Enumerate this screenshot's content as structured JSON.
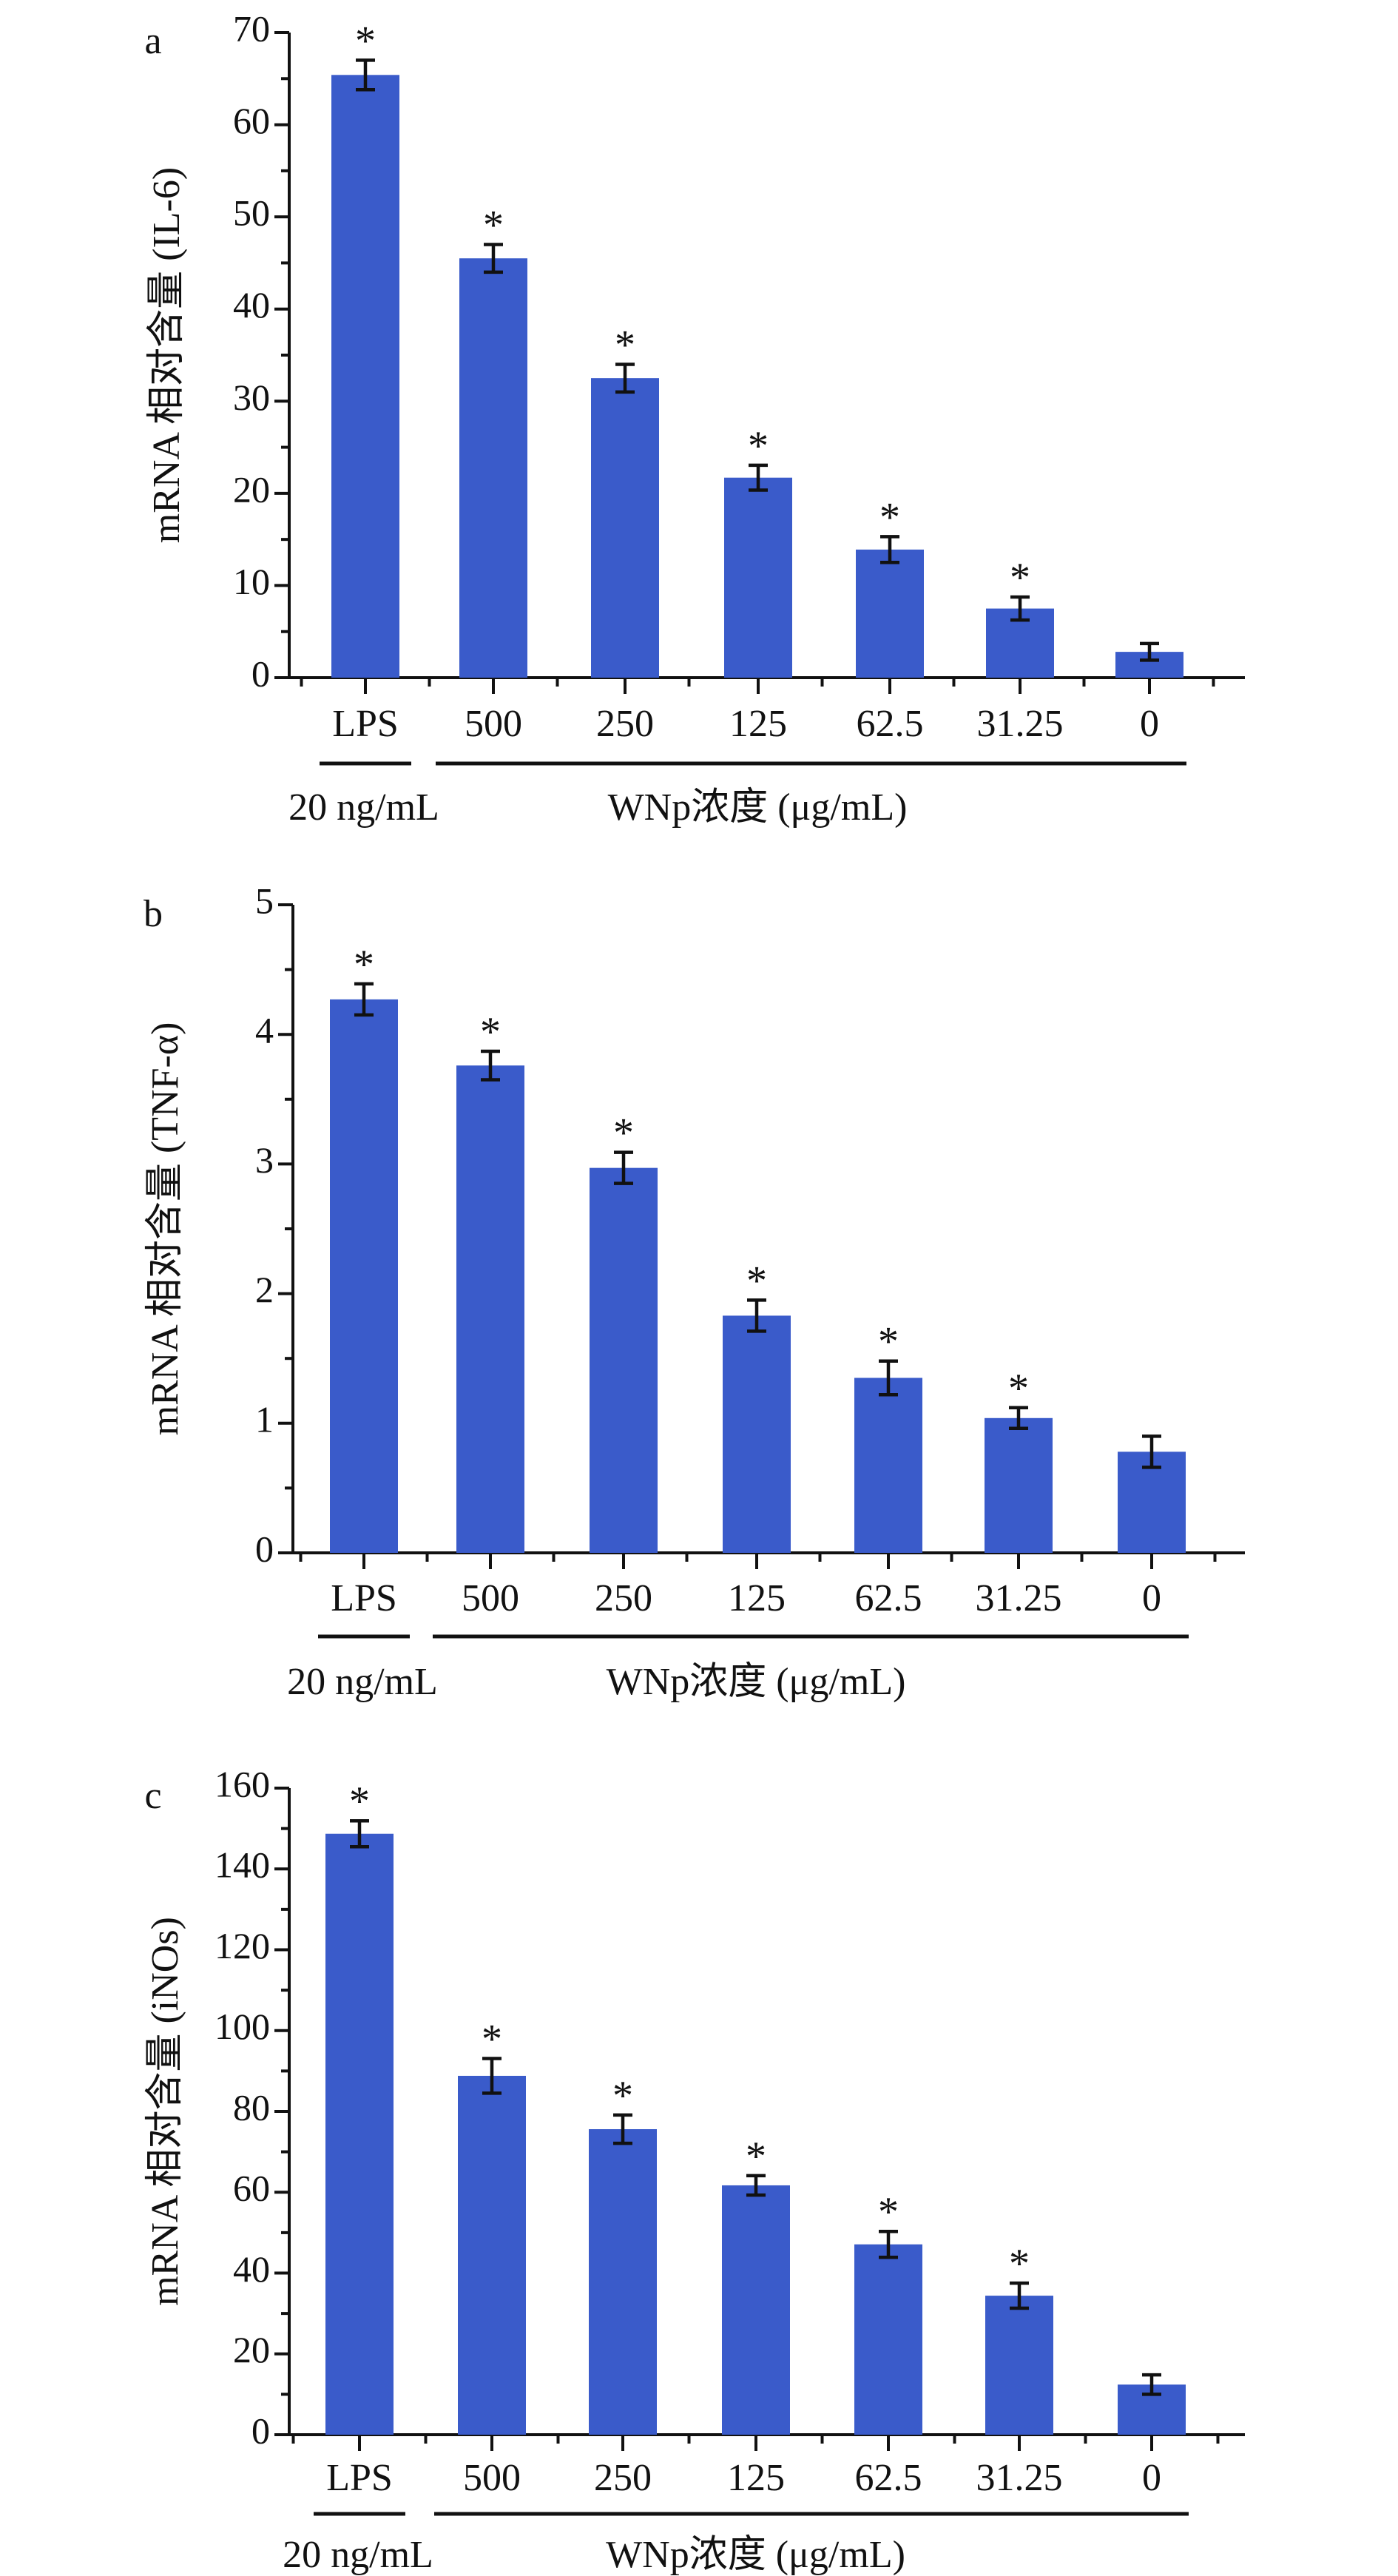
{
  "figure": {
    "bar_color": "#3a5bca",
    "axis_color": "#111111"
  },
  "chart_data": [
    {
      "type": "bar",
      "panel": "a",
      "title": "",
      "xlabel": "",
      "ylabel": "mRNA 相对含量 (IL-6)",
      "categories": [
        "LPS",
        "500",
        "250",
        "125",
        "62.5",
        "31.25",
        "0"
      ],
      "values": [
        65.4,
        45.5,
        32.5,
        21.7,
        13.9,
        7.5,
        2.8
      ],
      "errors": [
        1.6,
        1.5,
        1.5,
        1.35,
        1.4,
        1.25,
        0.9
      ],
      "significance": [
        "*",
        "*",
        "*",
        "*",
        "*",
        "*",
        ""
      ],
      "ylim": [
        0,
        70
      ],
      "yticks": [
        0,
        10,
        20,
        30,
        40,
        50,
        60,
        70
      ],
      "yticks_minor_step": 5,
      "grid": false,
      "group_labels": [
        {
          "text": "20 ng/mL",
          "span": [
            "LPS"
          ]
        },
        {
          "text": "WNp浓度 (μg/mL)",
          "span": [
            "500",
            "250",
            "125",
            "62.5",
            "31.25",
            "0"
          ]
        }
      ]
    },
    {
      "type": "bar",
      "panel": "b",
      "title": "",
      "xlabel": "",
      "ylabel": "mRNA 相对含量 (TNF-α)",
      "categories": [
        "LPS",
        "500",
        "250",
        "125",
        "62.5",
        "31.25",
        "0"
      ],
      "values": [
        4.27,
        3.76,
        2.97,
        1.83,
        1.35,
        1.04,
        0.78
      ],
      "errors": [
        0.12,
        0.11,
        0.12,
        0.12,
        0.13,
        0.08,
        0.12
      ],
      "significance": [
        "*",
        "*",
        "*",
        "*",
        "*",
        "*",
        ""
      ],
      "ylim": [
        0,
        5
      ],
      "yticks": [
        0,
        1,
        2,
        3,
        4,
        5
      ],
      "yticks_minor_step": 0.5,
      "grid": false,
      "group_labels": [
        {
          "text": "20 ng/mL",
          "span": [
            "LPS"
          ]
        },
        {
          "text": "WNp浓度 (μg/mL)",
          "span": [
            "500",
            "250",
            "125",
            "62.5",
            "31.25",
            "0"
          ]
        }
      ]
    },
    {
      "type": "bar",
      "panel": "c",
      "title": "",
      "xlabel": "",
      "ylabel": "mRNA 相对含量 (iNOs)",
      "categories": [
        "LPS",
        "500",
        "250",
        "125",
        "62.5",
        "31.25",
        "0"
      ],
      "values": [
        148.7,
        88.8,
        75.6,
        61.7,
        47.1,
        34.4,
        12.4
      ],
      "errors": [
        3.2,
        4.3,
        3.5,
        2.4,
        3.2,
        3.1,
        2.4
      ],
      "significance": [
        "*",
        "*",
        "*",
        "*",
        "*",
        "*",
        ""
      ],
      "ylim": [
        0,
        160
      ],
      "yticks": [
        0,
        20,
        40,
        60,
        80,
        100,
        120,
        140,
        160
      ],
      "yticks_minor_step": 10,
      "grid": false,
      "group_labels": [
        {
          "text": "20 ng/mL",
          "span": [
            "LPS"
          ]
        },
        {
          "text": "WNp浓度 (μg/mL)",
          "span": [
            "500",
            "250",
            "125",
            "62.5",
            "31.25",
            "0"
          ]
        }
      ]
    }
  ]
}
